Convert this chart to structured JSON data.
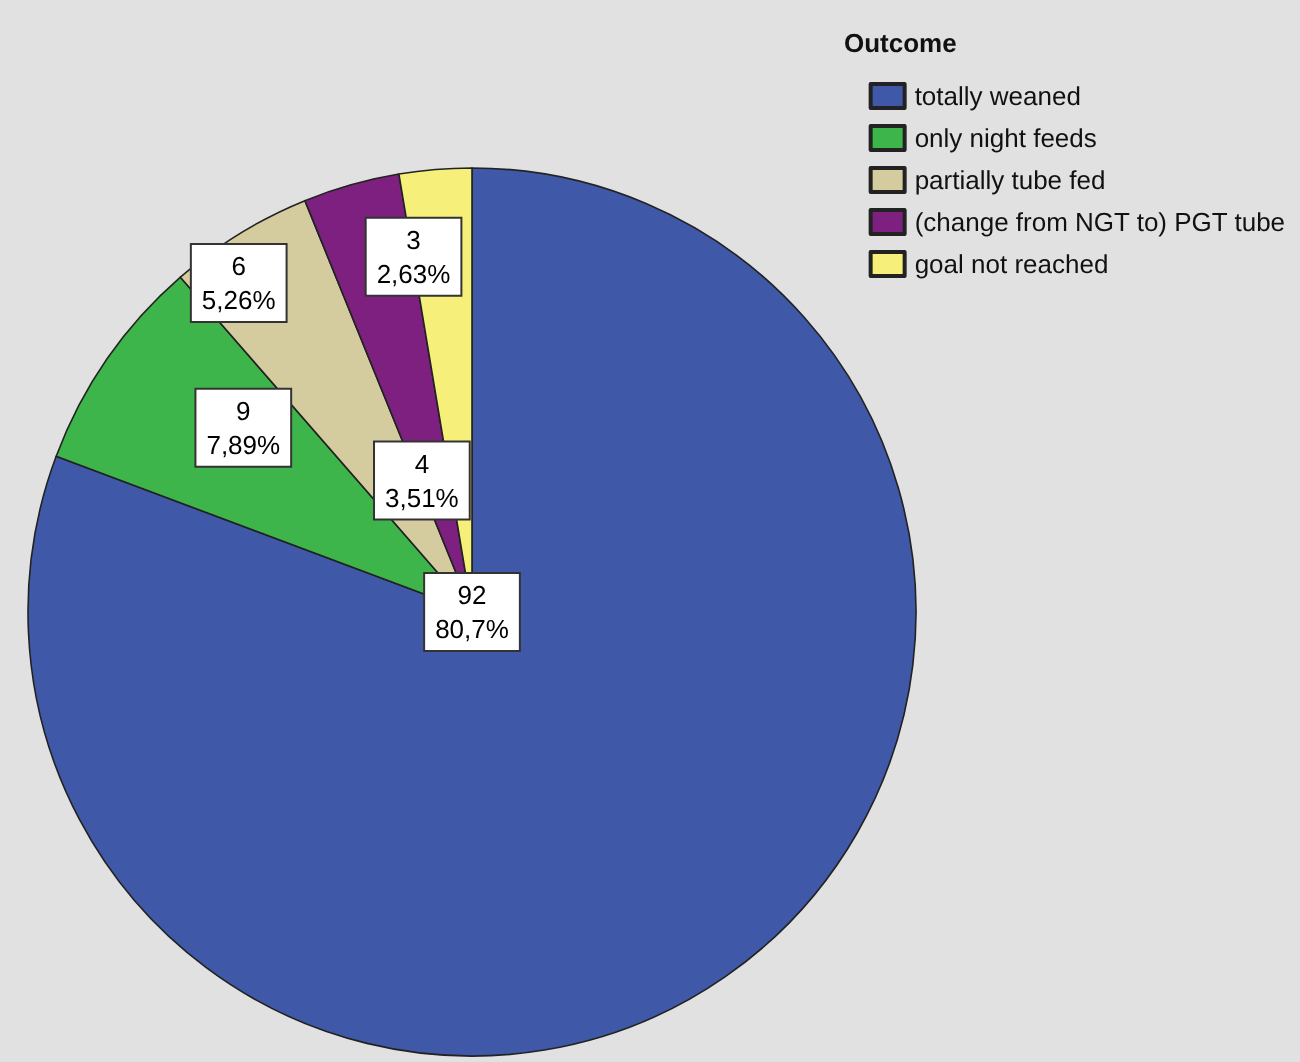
{
  "chart_data": {
    "type": "pie",
    "legend_title": "Outcome",
    "legend": "top right",
    "categories": [
      "totally weaned",
      "only night feeds",
      "partially tube fed",
      "(change from NGT to) PGT tube",
      "goal not reached"
    ],
    "values": [
      92,
      9,
      6,
      4,
      3
    ],
    "colors": [
      "#3f58a8",
      "#3db54a",
      "#d4cc9f",
      "#7e2080",
      "#f6f07a"
    ],
    "value_labels": [
      "92\n80,7%",
      "9\n7,89%",
      "6\n5,26%",
      "4\n3,51%",
      "3\n2,63%"
    ]
  }
}
